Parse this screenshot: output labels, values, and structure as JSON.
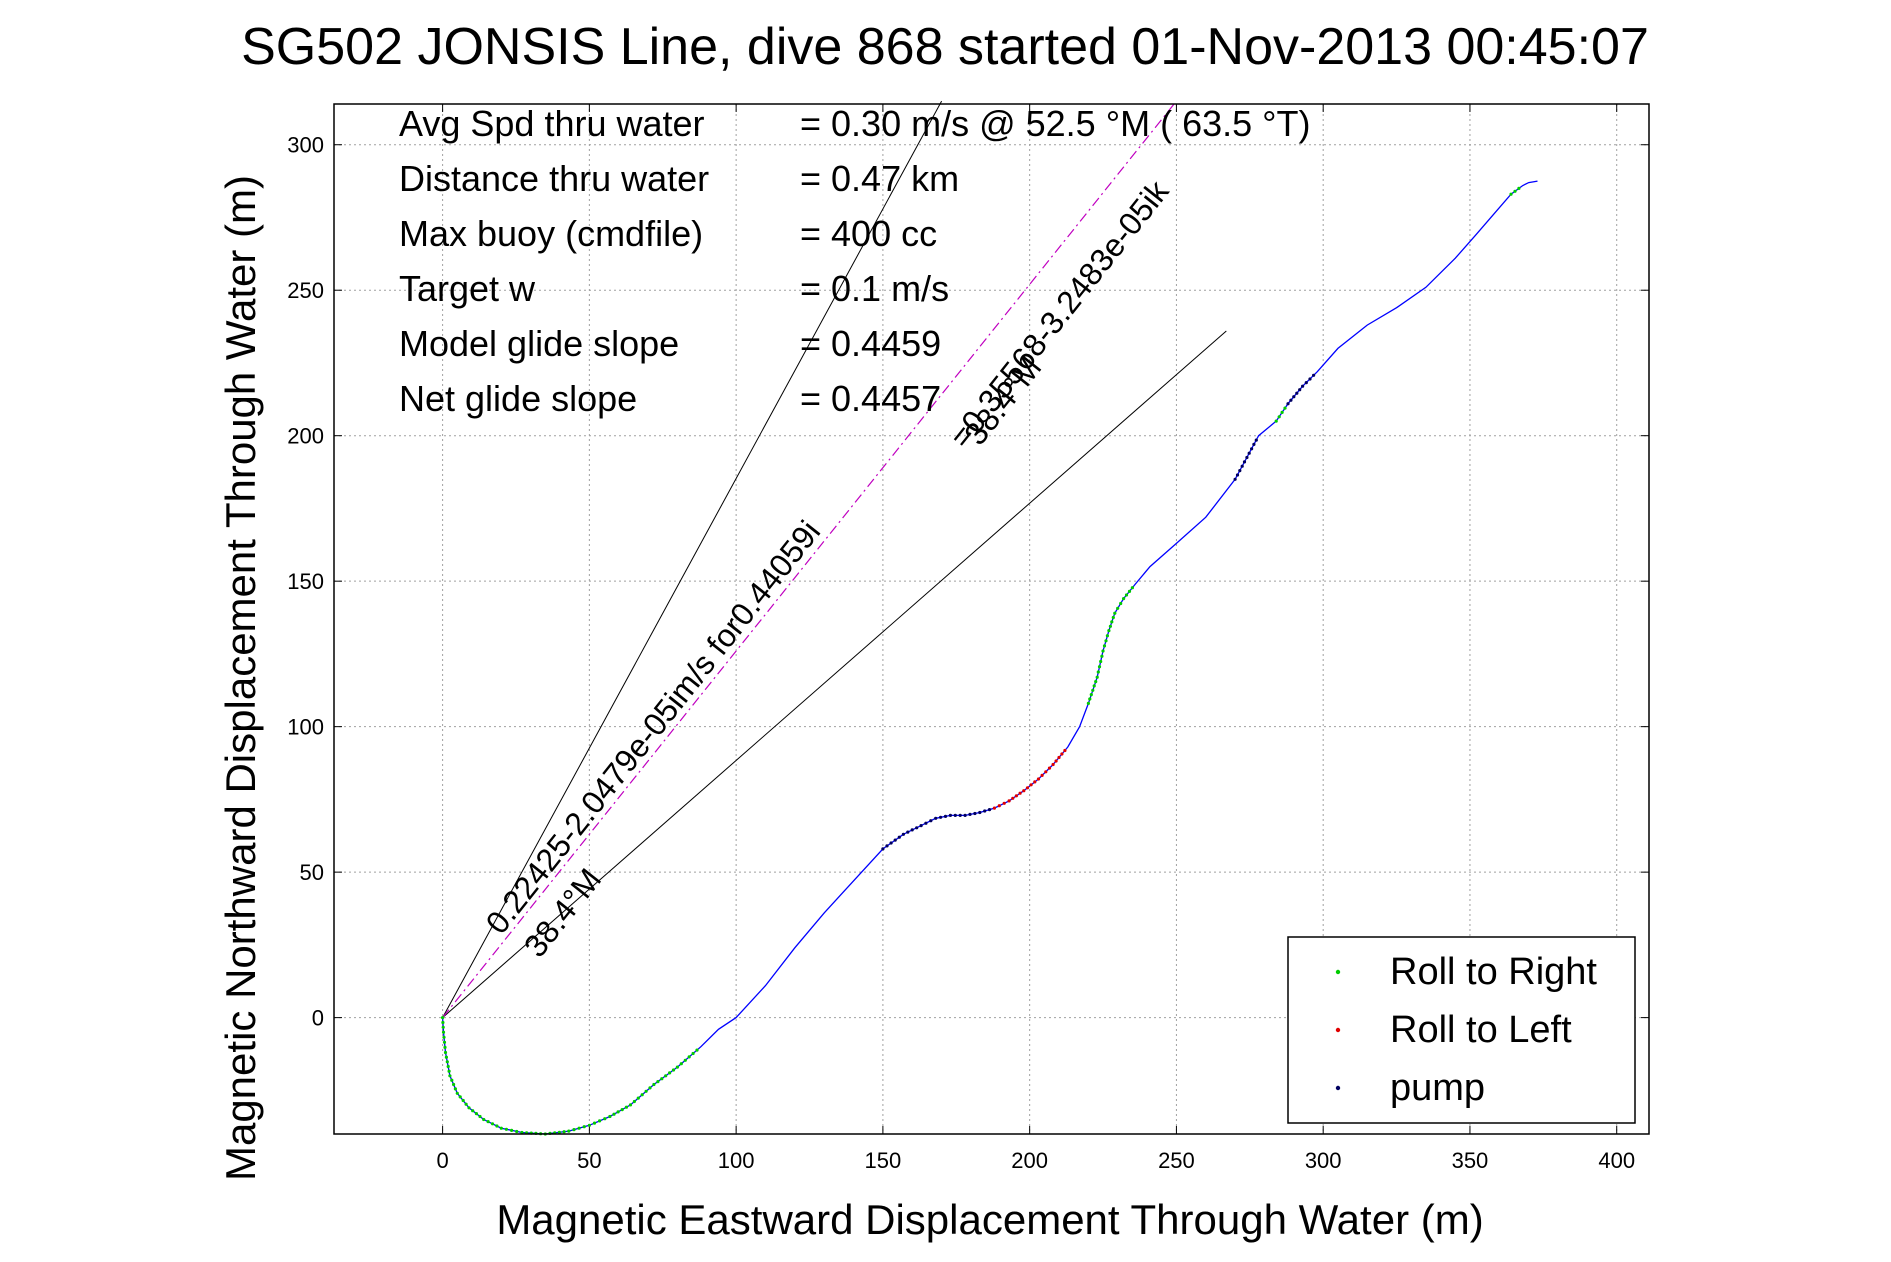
{
  "chart_data": {
    "type": "scatter",
    "title": "SG502 JONSIS Line, dive 868 started 01-Nov-2013 00:45:07",
    "xlabel": "Magnetic Eastward Displacement Through Water (m)",
    "ylabel": "Magnetic Northward Displacement Through Water (m)",
    "xlim": [
      -37,
      411
    ],
    "ylim": [
      -40,
      314
    ],
    "xticks": [
      0,
      50,
      100,
      150,
      200,
      250,
      300,
      350,
      400
    ],
    "yticks": [
      0,
      50,
      100,
      150,
      200,
      250,
      300
    ],
    "xtick_labels": [
      "0",
      "50",
      "100",
      "150",
      "200",
      "250",
      "300",
      "350",
      "400"
    ],
    "ytick_labels": [
      "0",
      "50",
      "100",
      "150",
      "200",
      "250",
      "300"
    ],
    "grid": true,
    "legend_position": "bottom-right",
    "stats": [
      {
        "label": "Avg Spd thru water",
        "value": "=  0.30 m/s @  52.5 °M ( 63.5 °T)"
      },
      {
        "label": "Distance thru water",
        "value": "=  0.47 km"
      },
      {
        "label": "Max buoy (cmdfile)",
        "value": "= 400 cc"
      },
      {
        "label": "Target w",
        "value": "= 0.1 m/s"
      },
      {
        "label": "Model glide slope",
        "value": "= 0.4459"
      },
      {
        "label": "Net glide slope",
        "value": "= 0.4457"
      }
    ],
    "track": {
      "color": "#0000ff",
      "x": [
        0,
        0.3,
        1,
        2.5,
        5,
        9,
        14,
        20,
        27,
        35,
        43,
        50,
        57,
        64,
        72,
        80,
        88,
        94,
        100,
        110,
        120,
        130,
        140,
        150,
        157,
        163,
        168,
        173,
        178,
        183,
        188,
        193,
        198,
        203,
        208,
        213,
        217,
        220,
        223,
        225,
        227,
        229,
        232,
        236,
        241,
        250,
        260,
        270,
        278,
        284,
        288,
        293,
        298,
        305,
        315,
        325,
        335,
        345,
        352,
        358,
        364,
        368,
        370,
        373
      ],
      "y": [
        0,
        -5,
        -12,
        -20,
        -26,
        -31,
        -35,
        -38,
        -39.5,
        -40,
        -39,
        -37,
        -34,
        -30,
        -23,
        -17,
        -10,
        -4,
        0,
        11,
        24,
        36,
        47,
        58,
        63,
        66,
        68.5,
        69.5,
        69.5,
        70.5,
        72,
        74.5,
        78,
        82,
        87,
        93,
        100,
        108,
        117,
        126,
        133,
        139,
        144,
        149,
        155,
        163,
        172,
        185,
        200,
        205,
        211,
        217,
        222,
        230,
        238,
        244,
        251,
        261,
        269,
        276,
        283,
        286,
        287,
        287.5
      ]
    },
    "roll_right_segments": [
      [
        0,
        60
      ],
      [
        20,
        22
      ],
      [
        33,
        36
      ],
      [
        38,
        39
      ],
      [
        42,
        43
      ],
      [
        50,
        53
      ],
      [
        60,
        61
      ]
    ],
    "roll_left_segments": [
      [
        29,
        32
      ],
      [
        34,
        35
      ]
    ],
    "pump_segments": [
      [
        21,
        28
      ],
      [
        40,
        41
      ],
      [
        47,
        48
      ],
      [
        49,
        52
      ]
    ],
    "reference_lines": [
      {
        "x": [
          0,
          170
        ],
        "y": [
          0,
          315
        ]
      },
      {
        "x": [
          0,
          267
        ],
        "y": [
          0,
          236
        ]
      }
    ],
    "heading_line": {
      "color": "#c000c0",
      "style": "dashdot",
      "x": [
        0,
        250
      ],
      "y": [
        0,
        315
      ]
    },
    "annotations": [
      {
        "text": "0.22425-2.0479e-05im/s for0.44059i",
        "x": 20,
        "y": 28,
        "angle": -51.6
      },
      {
        "text": "38.4°M",
        "x": 33,
        "y": 20,
        "angle": -51.6
      },
      {
        "text": "=0.35568-3.2483e-05ik",
        "x": 178,
        "y": 195,
        "angle": -51.6
      },
      {
        "text": "38.4°M",
        "x": 183,
        "y": 196,
        "angle": -51.6
      }
    ],
    "legend": [
      {
        "label": "Roll to Right",
        "color": "#00cc00"
      },
      {
        "label": "Roll to Left",
        "color": "#e00000"
      },
      {
        "label": "pump",
        "color": "#000060"
      }
    ]
  }
}
